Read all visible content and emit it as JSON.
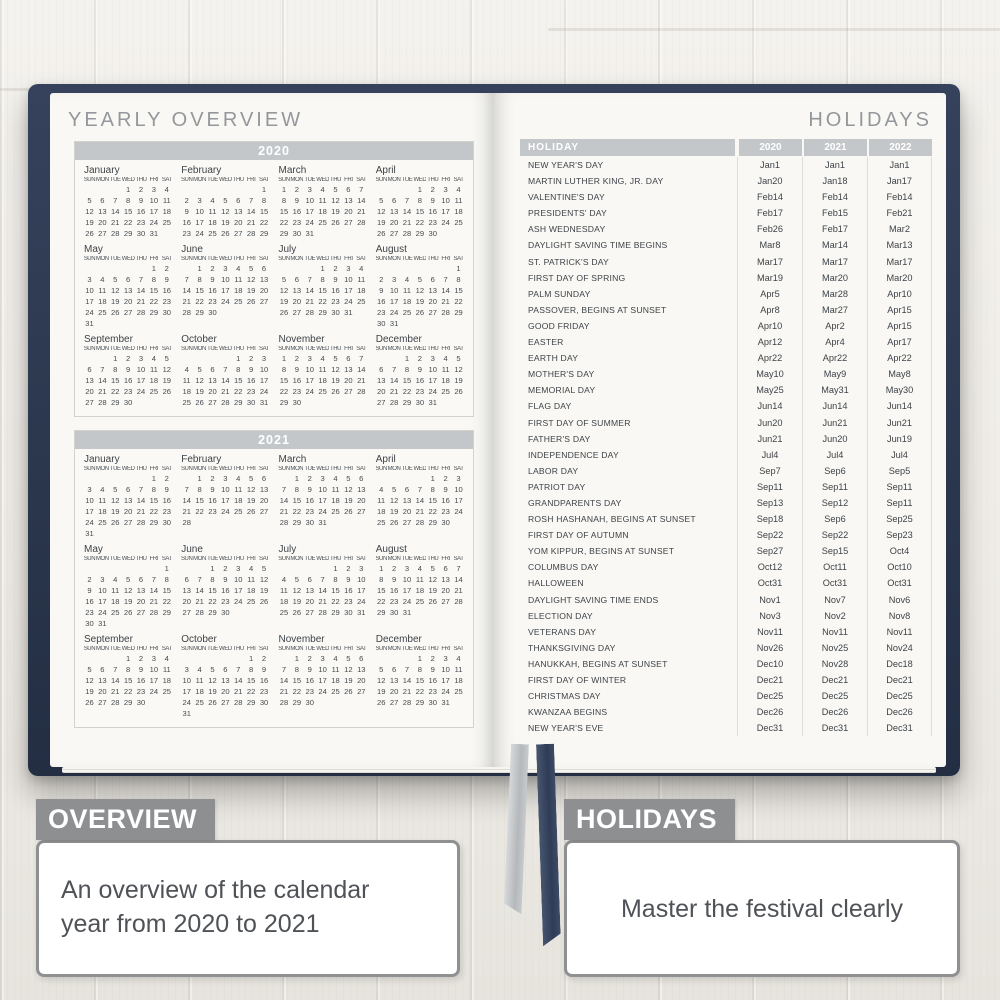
{
  "colors": {
    "cover_navy": "#2b374d",
    "page_cream": "#f9f8f4",
    "table_header_gray": "#c4c7ca",
    "callout_gray": "#8d8f91",
    "ribbon_gray": "#bfc2c5",
    "ribbon_navy": "#3d4b66",
    "text_dark_gray": "#3e4348"
  },
  "left_page": {
    "title": "YEARLY OVERVIEW",
    "day_headers": [
      "SUN",
      "MON",
      "TUE",
      "WED",
      "THU",
      "FRI",
      "SAT"
    ],
    "years": [
      {
        "year": "2020",
        "months": [
          {
            "name": "January",
            "first_dow": 3,
            "days": 31
          },
          {
            "name": "February",
            "first_dow": 6,
            "days": 29
          },
          {
            "name": "March",
            "first_dow": 0,
            "days": 31
          },
          {
            "name": "April",
            "first_dow": 3,
            "days": 30
          },
          {
            "name": "May",
            "first_dow": 5,
            "days": 31
          },
          {
            "name": "June",
            "first_dow": 1,
            "days": 30
          },
          {
            "name": "July",
            "first_dow": 3,
            "days": 31
          },
          {
            "name": "August",
            "first_dow": 6,
            "days": 31
          },
          {
            "name": "September",
            "first_dow": 2,
            "days": 30
          },
          {
            "name": "October",
            "first_dow": 4,
            "days": 31
          },
          {
            "name": "November",
            "first_dow": 0,
            "days": 30
          },
          {
            "name": "December",
            "first_dow": 2,
            "days": 31
          }
        ]
      },
      {
        "year": "2021",
        "months": [
          {
            "name": "January",
            "first_dow": 5,
            "days": 31
          },
          {
            "name": "February",
            "first_dow": 1,
            "days": 28
          },
          {
            "name": "March",
            "first_dow": 1,
            "days": 31
          },
          {
            "name": "April",
            "first_dow": 4,
            "days": 30
          },
          {
            "name": "May",
            "first_dow": 6,
            "days": 31
          },
          {
            "name": "June",
            "first_dow": 2,
            "days": 30
          },
          {
            "name": "July",
            "first_dow": 4,
            "days": 31
          },
          {
            "name": "August",
            "first_dow": 0,
            "days": 31
          },
          {
            "name": "September",
            "first_dow": 3,
            "days": 30
          },
          {
            "name": "October",
            "first_dow": 5,
            "days": 31
          },
          {
            "name": "November",
            "first_dow": 1,
            "days": 30
          },
          {
            "name": "December",
            "first_dow": 3,
            "days": 31
          }
        ]
      }
    ]
  },
  "right_page": {
    "title": "HOLIDAYS",
    "table": {
      "name_header": "HOLIDAY",
      "year_headers": [
        "2020",
        "2021",
        "2022"
      ],
      "rows": [
        {
          "name": "NEW YEAR'S DAY",
          "dates": [
            "Jan1",
            "Jan1",
            "Jan1"
          ]
        },
        {
          "name": "MARTIN LUTHER KING, JR. DAY",
          "dates": [
            "Jan20",
            "Jan18",
            "Jan17"
          ]
        },
        {
          "name": "VALENTINE'S DAY",
          "dates": [
            "Feb14",
            "Feb14",
            "Feb14"
          ]
        },
        {
          "name": "PRESIDENTS' DAY",
          "dates": [
            "Feb17",
            "Feb15",
            "Feb21"
          ]
        },
        {
          "name": "ASH WEDNESDAY",
          "dates": [
            "Feb26",
            "Feb17",
            "Mar2"
          ]
        },
        {
          "name": "DAYLIGHT SAVING TIME BEGINS",
          "dates": [
            "Mar8",
            "Mar14",
            "Mar13"
          ]
        },
        {
          "name": "ST. PATRICK'S DAY",
          "dates": [
            "Mar17",
            "Mar17",
            "Mar17"
          ]
        },
        {
          "name": "FIRST DAY OF SPRING",
          "dates": [
            "Mar19",
            "Mar20",
            "Mar20"
          ]
        },
        {
          "name": "PALM SUNDAY",
          "dates": [
            "Apr5",
            "Mar28",
            "Apr10"
          ]
        },
        {
          "name": "PASSOVER, BEGINS AT SUNSET",
          "dates": [
            "Apr8",
            "Mar27",
            "Apr15"
          ]
        },
        {
          "name": "GOOD FRIDAY",
          "dates": [
            "Apr10",
            "Apr2",
            "Apr15"
          ]
        },
        {
          "name": "EASTER",
          "dates": [
            "Apr12",
            "Apr4",
            "Apr17"
          ]
        },
        {
          "name": "EARTH DAY",
          "dates": [
            "Apr22",
            "Apr22",
            "Apr22"
          ]
        },
        {
          "name": "MOTHER'S DAY",
          "dates": [
            "May10",
            "May9",
            "May8"
          ]
        },
        {
          "name": "MEMORIAL DAY",
          "dates": [
            "May25",
            "May31",
            "May30"
          ]
        },
        {
          "name": "FLAG DAY",
          "dates": [
            "Jun14",
            "Jun14",
            "Jun14"
          ]
        },
        {
          "name": "FIRST DAY OF SUMMER",
          "dates": [
            "Jun20",
            "Jun21",
            "Jun21"
          ]
        },
        {
          "name": "FATHER'S DAY",
          "dates": [
            "Jun21",
            "Jun20",
            "Jun19"
          ]
        },
        {
          "name": "INDEPENDENCE DAY",
          "dates": [
            "Jul4",
            "Jul4",
            "Jul4"
          ]
        },
        {
          "name": "LABOR DAY",
          "dates": [
            "Sep7",
            "Sep6",
            "Sep5"
          ]
        },
        {
          "name": "PATRIOT DAY",
          "dates": [
            "Sep11",
            "Sep11",
            "Sep11"
          ]
        },
        {
          "name": "GRANDPARENTS DAY",
          "dates": [
            "Sep13",
            "Sep12",
            "Sep11"
          ]
        },
        {
          "name": "ROSH HASHANAH, BEGINS AT SUNSET",
          "dates": [
            "Sep18",
            "Sep6",
            "Sep25"
          ]
        },
        {
          "name": "FIRST DAY OF AUTUMN",
          "dates": [
            "Sep22",
            "Sep22",
            "Sep23"
          ]
        },
        {
          "name": "YOM KIPPUR, BEGINS AT SUNSET",
          "dates": [
            "Sep27",
            "Sep15",
            "Oct4"
          ]
        },
        {
          "name": "COLUMBUS DAY",
          "dates": [
            "Oct12",
            "Oct11",
            "Oct10"
          ]
        },
        {
          "name": "HALLOWEEN",
          "dates": [
            "Oct31",
            "Oct31",
            "Oct31"
          ]
        },
        {
          "name": "DAYLIGHT SAVING TIME ENDS",
          "dates": [
            "Nov1",
            "Nov7",
            "Nov6"
          ]
        },
        {
          "name": "ELECTION DAY",
          "dates": [
            "Nov3",
            "Nov2",
            "Nov8"
          ]
        },
        {
          "name": "VETERANS DAY",
          "dates": [
            "Nov11",
            "Nov11",
            "Nov11"
          ]
        },
        {
          "name": "THANKSGIVING DAY",
          "dates": [
            "Nov26",
            "Nov25",
            "Nov24"
          ]
        },
        {
          "name": "HANUKKAH, BEGINS AT SUNSET",
          "dates": [
            "Dec10",
            "Nov28",
            "Dec18"
          ]
        },
        {
          "name": "FIRST DAY OF WINTER",
          "dates": [
            "Dec21",
            "Dec21",
            "Dec21"
          ]
        },
        {
          "name": "CHRISTMAS DAY",
          "dates": [
            "Dec25",
            "Dec25",
            "Dec25"
          ]
        },
        {
          "name": "KWANZAA BEGINS",
          "dates": [
            "Dec26",
            "Dec26",
            "Dec26"
          ]
        },
        {
          "name": "NEW YEAR'S EVE",
          "dates": [
            "Dec31",
            "Dec31",
            "Dec31"
          ]
        }
      ]
    }
  },
  "callouts": [
    {
      "title": "OVERVIEW",
      "text": "An overview of the calendar year from 2020 to 2021"
    },
    {
      "title": "HOLIDAYS",
      "text": "Master the festival clearly"
    }
  ]
}
